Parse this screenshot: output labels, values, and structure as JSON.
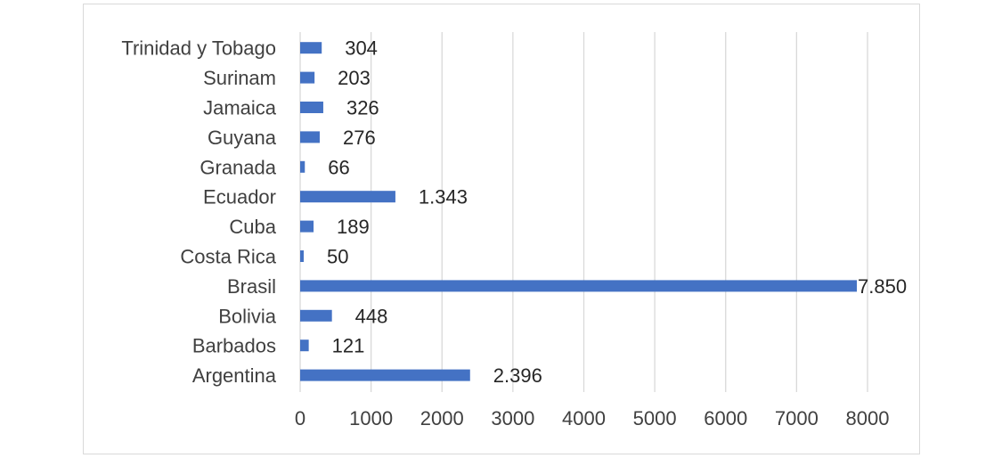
{
  "chart_data": {
    "type": "bar",
    "orientation": "horizontal",
    "categories": [
      "Argentina",
      "Barbados",
      "Bolivia",
      "Brasil",
      "Costa Rica",
      "Cuba",
      "Ecuador",
      "Granada",
      "Guyana",
      "Jamaica",
      "Surinam",
      "Trinidad y Tobago"
    ],
    "values": [
      2396,
      121,
      448,
      7850,
      50,
      189,
      1343,
      66,
      276,
      326,
      203,
      304
    ],
    "data_labels": [
      "2.396",
      "121",
      "448",
      "7.850",
      "50",
      "189",
      "1.343",
      "66",
      "276",
      "326",
      "203",
      "304"
    ],
    "title": "",
    "xlabel": "",
    "ylabel": "",
    "xlim": [
      0,
      8000
    ],
    "ticks": [
      0,
      1000,
      2000,
      3000,
      4000,
      5000,
      6000,
      7000,
      8000
    ],
    "tick_labels": [
      "0",
      "1000",
      "2000",
      "3000",
      "4000",
      "5000",
      "6000",
      "7000",
      "8000"
    ],
    "grid": "vertical",
    "legend": "none",
    "bar_color": "#4472c4",
    "grid_color": "#d9d9d9",
    "text_color": "#404040"
  }
}
